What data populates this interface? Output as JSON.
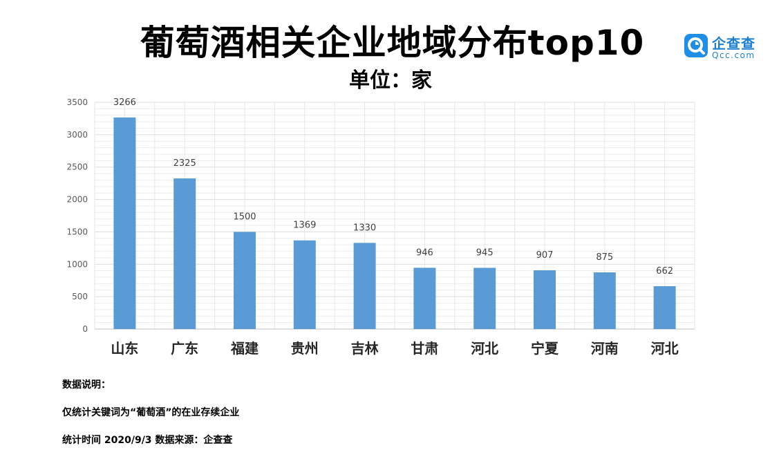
{
  "title": "葡萄酒相关企业地域分布top10",
  "subtitle": "单位：家",
  "logo": {
    "cn": "企查查",
    "en": "Qcc.com",
    "icon": "qcc-logo-icon",
    "color": "#1e8ee6"
  },
  "notes": {
    "heading": "数据说明：",
    "line1": "仅统计关键词为“葡萄酒”的在业存续企业",
    "line2": "统计时间 2020/9/3   数据来源：企查查"
  },
  "chart_data": {
    "type": "bar",
    "categories": [
      "山东",
      "广东",
      "福建",
      "贵州",
      "吉林",
      "甘肃",
      "河北",
      "宁夏",
      "河南",
      "河北"
    ],
    "values": [
      3266,
      2325,
      1500,
      1369,
      1330,
      946,
      945,
      907,
      875,
      662
    ],
    "ylim": [
      0,
      3500
    ],
    "yticks": [
      0,
      500,
      1000,
      1500,
      2000,
      2500,
      3000,
      3500
    ],
    "grid": true,
    "bar_color": "#5b9bd5"
  }
}
